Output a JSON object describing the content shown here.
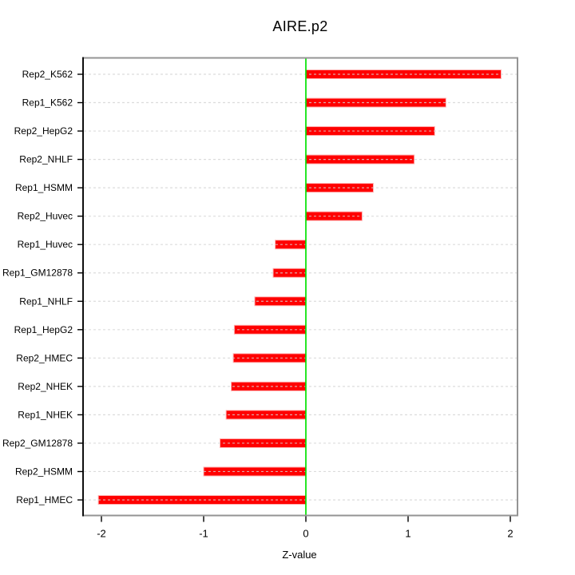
{
  "chart_data": {
    "type": "bar",
    "orientation": "horizontal",
    "title": "AIRE.p2",
    "xlabel": "Z-value",
    "ylabel": "",
    "categories": [
      "Rep2_K562",
      "Rep1_K562",
      "Rep2_HepG2",
      "Rep2_NHLF",
      "Rep1_HSMM",
      "Rep2_Huvec",
      "Rep1_Huvec",
      "Rep1_GM12878",
      "Rep1_NHLF",
      "Rep1_HepG2",
      "Rep2_HMEC",
      "Rep2_NHEK",
      "Rep1_NHEK",
      "Rep2_GM12878",
      "Rep2_HSMM",
      "Rep1_HMEC"
    ],
    "values": [
      1.91,
      1.37,
      1.26,
      1.06,
      0.66,
      0.55,
      -0.3,
      -0.32,
      -0.5,
      -0.7,
      -0.71,
      -0.73,
      -0.78,
      -0.84,
      -1.0,
      -2.03
    ],
    "x_ticks": [
      -2,
      -1,
      0,
      1,
      2
    ],
    "xlim": [
      -2.18,
      2.07
    ],
    "grid": "dashed horizontal line per category, drawn over bars",
    "legend": "none",
    "colors": {
      "bar": "#ff0000",
      "bar_edge": "#ffb0b0",
      "zero_line": "#00e100",
      "grid": "#d3d3d3",
      "box": "#949494",
      "axis": "#000000",
      "text": "#000000",
      "background": "#ffffff"
    }
  }
}
